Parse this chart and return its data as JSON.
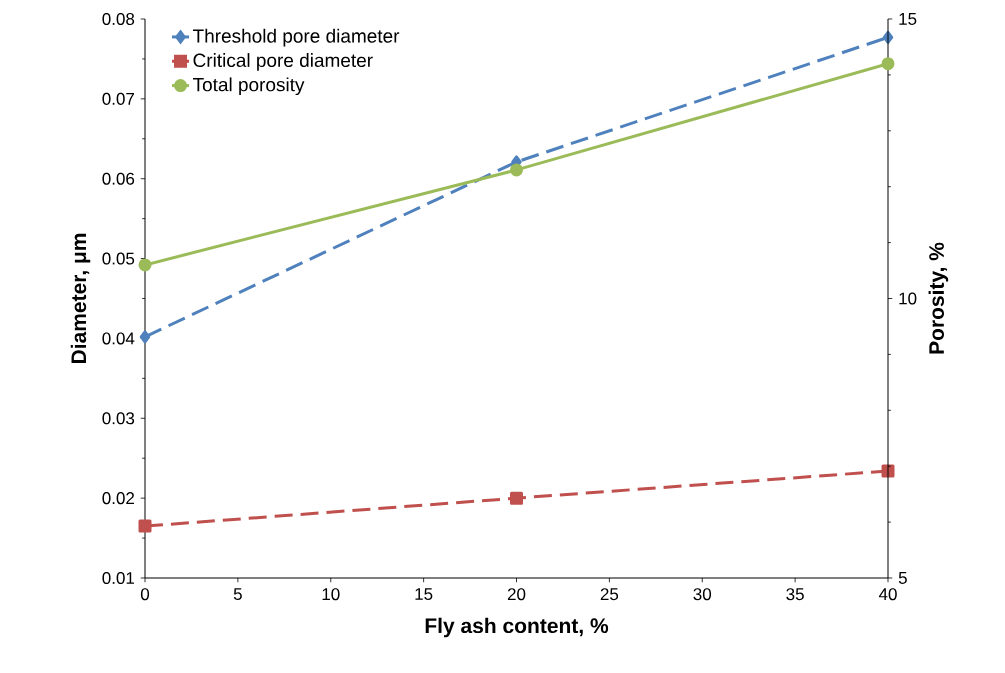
{
  "chart_data": {
    "type": "line",
    "xlabel": "Fly ash content, %",
    "ylabel": "Diameter, μm",
    "y2label": "Porosity, %",
    "x": [
      0,
      20,
      40
    ],
    "series": [
      {
        "name": "Threshold pore diameter",
        "color": "#4f81bd",
        "values": [
          0.0402,
          0.0621,
          0.0777
        ],
        "marker": "diamond",
        "line_style": "dashed"
      },
      {
        "name": "Critical pore diameter",
        "color": "#c0504d",
        "values": [
          0.0165,
          0.02,
          0.0234
        ],
        "marker": "square",
        "line_style": "dashed"
      },
      {
        "name": "Total porosity",
        "color": "#9bbb59",
        "values": [
          10.6,
          12.3,
          14.2
        ],
        "marker": "circle",
        "line_style": "solid",
        "axis": "y2"
      }
    ],
    "xlim": [
      0,
      40
    ],
    "xticks": [
      0,
      5,
      10,
      15,
      20,
      25,
      30,
      35,
      40
    ],
    "ylim": [
      0.01,
      0.08
    ],
    "yticks": [
      0.01,
      0.02,
      0.03,
      0.04,
      0.05,
      0.06,
      0.07,
      0.08
    ],
    "y2lim": [
      5,
      15
    ],
    "y2ticks": [
      5,
      10,
      15
    ],
    "legend": "top left",
    "grid": false
  }
}
